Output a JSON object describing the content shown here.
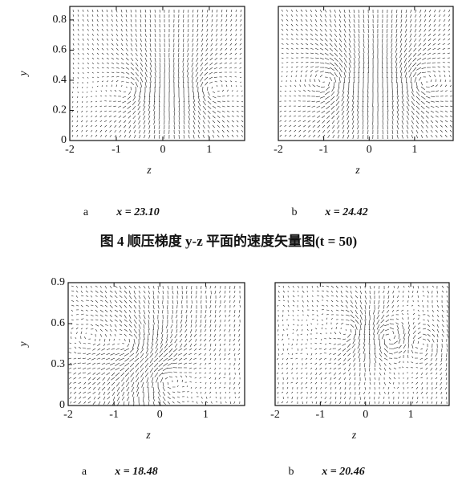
{
  "figures": [
    {
      "panels": [
        {
          "label": "a",
          "caption": "x = 23.10",
          "xlabel": "z",
          "ylabel": "y",
          "xlim": [
            -2,
            1.76
          ],
          "ylim": [
            0,
            0.89
          ],
          "xticks": [
            -2,
            -1,
            0,
            1
          ],
          "yticks": [
            0,
            0.2,
            0.4,
            0.6,
            0.8
          ]
        },
        {
          "label": "b",
          "caption": "x = 24.42",
          "xlabel": "z",
          "xlim": [
            -2,
            1.85
          ],
          "ylim": [
            0,
            0.89
          ],
          "xticks": [
            -2,
            -1,
            0,
            1
          ]
        }
      ],
      "caption": "图 4  顺压梯度 y-z 平面的速度矢量图(t = 50)"
    },
    {
      "panels": [
        {
          "label": "a",
          "caption": "x = 18.48",
          "xlabel": "z",
          "ylabel": "y",
          "xlim": [
            -2,
            1.85
          ],
          "ylim": [
            0,
            0.9
          ],
          "xticks": [
            -2,
            -1,
            0,
            1
          ],
          "yticks": [
            0,
            0.3,
            0.6,
            0.9
          ]
        },
        {
          "label": "b",
          "caption": "x = 20.46",
          "xlabel": "z",
          "xlim": [
            -2,
            1.85
          ],
          "ylim": [
            0,
            0.9
          ],
          "xticks": [
            -2,
            -1,
            0,
            1
          ]
        }
      ]
    }
  ]
}
